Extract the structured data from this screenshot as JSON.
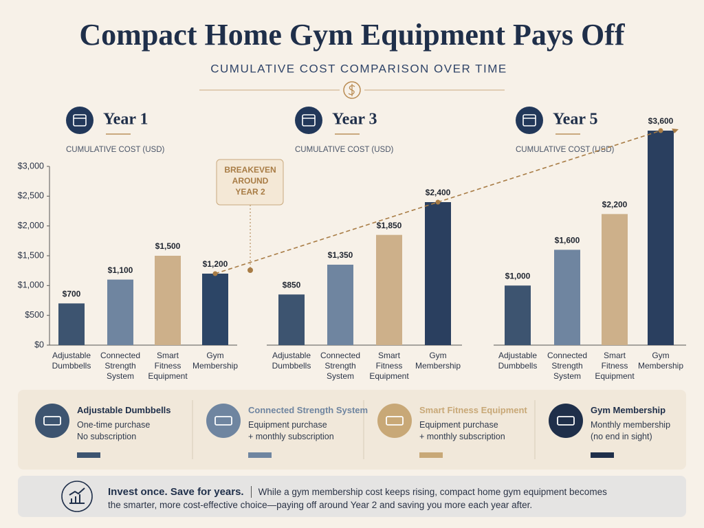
{
  "title": "Compact Home Gym Equipment Pays Off",
  "subtitle": "CUMULATIVE COST COMPARISON OVER TIME",
  "chart_data": [
    {
      "type": "bar",
      "title": "Year 1",
      "y_label": "CUMULATIVE COST (USD)",
      "categories": [
        "Adjustable Dumbbells",
        "Connected Strength System",
        "Smart Fitness Equipment",
        "Gym Membership"
      ],
      "values": [
        700,
        1100,
        1500,
        1200
      ],
      "value_labels": [
        "$700",
        "$1,100",
        "$1,500",
        "$1,200"
      ],
      "colors": [
        "#3d5470",
        "#6f85a0",
        "#cdb08a",
        "#2c4566"
      ],
      "ylim": [
        0,
        3000
      ],
      "yticks": [
        {
          "value": 0,
          "label": "$0"
        },
        {
          "value": 500,
          "label": "$500"
        },
        {
          "value": 1000,
          "label": "$1,000"
        },
        {
          "value": 1500,
          "label": "$1,500"
        },
        {
          "value": 2000,
          "label": "$2,000"
        },
        {
          "value": 2500,
          "label": "$2,500"
        },
        {
          "value": 3000,
          "label": "$3,000"
        }
      ]
    },
    {
      "type": "bar",
      "title": "Year 3",
      "y_label": "CUMULATIVE COST (USD)",
      "categories": [
        "Adjustable Dumbbells",
        "Connected Strength System",
        "Smart Fitness Equipment",
        "Gym Membership"
      ],
      "values": [
        850,
        1350,
        1850,
        2400
      ],
      "value_labels": [
        "$850",
        "$1,350",
        "$1,850",
        "$2,400"
      ],
      "colors": [
        "#3d5470",
        "#6f85a0",
        "#cdb08a",
        "#2a3f5f"
      ],
      "ylim": [
        0,
        3000
      ]
    },
    {
      "type": "bar",
      "title": "Year 5",
      "y_label": "CUMULATIVE COST (USD)",
      "categories": [
        "Adjustable Dumbbells",
        "Connected Strength System",
        "Smart Fitness Equipment",
        "Gym Membership"
      ],
      "values": [
        1000,
        1600,
        2200,
        3600
      ],
      "value_labels": [
        "$1,000",
        "$1,600",
        "$2,200",
        "$3,600"
      ],
      "colors": [
        "#3d5470",
        "#6f85a0",
        "#cdb08a",
        "#2a3f5f"
      ],
      "ylim": [
        0,
        3000
      ]
    }
  ],
  "annotation": [
    "BREAKEVEN",
    "AROUND",
    "YEAR 2"
  ],
  "legend": [
    {
      "title": "Adjustable Dumbbells",
      "lines": [
        "One-time purchase",
        "No subscription"
      ],
      "color": "#3d5470"
    },
    {
      "title": "Connected Strength System",
      "lines": [
        "Equipment purchase",
        "+ monthly subscription"
      ],
      "color": "#6f85a0"
    },
    {
      "title": "Smart Fitness Equipment",
      "lines": [
        "Equipment purchase",
        "+ monthly subscription"
      ],
      "color": "#c8a877"
    },
    {
      "title": "Gym Membership",
      "lines": [
        "Monthly membership",
        "(no end in sight)"
      ],
      "color": "#1f2f4a"
    }
  ],
  "footer": {
    "headline": "Invest once. Save for years.",
    "text": "While a gym membership cost keeps rising, compact home gym equipment becomes the smarter, more cost-effective choice—paying off around Year 2 and saving you more each year after."
  }
}
